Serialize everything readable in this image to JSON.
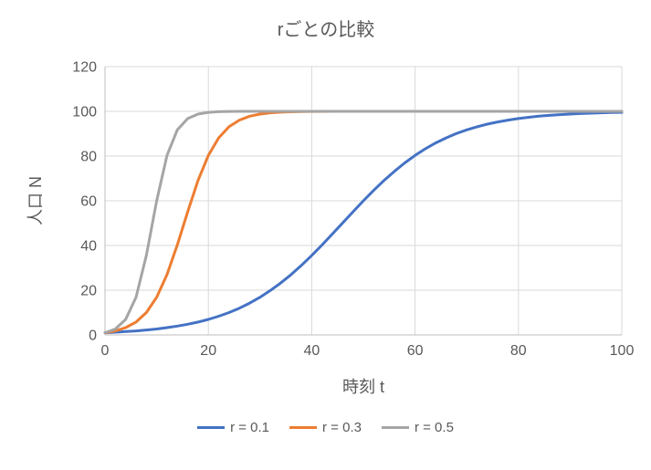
{
  "colors": {
    "text": "#595959",
    "gridline": "#D9D9D9",
    "axis": "#BFBFBF",
    "background": "#FFFFFF"
  },
  "chart_data": {
    "type": "line",
    "title": "rごとの比較",
    "xlabel": "時刻 t",
    "ylabel": "人口 N",
    "xlim": [
      0,
      100
    ],
    "ylim": [
      0,
      120
    ],
    "xticks": [
      0,
      20,
      40,
      60,
      80,
      100
    ],
    "yticks": [
      0,
      20,
      40,
      60,
      80,
      100,
      120
    ],
    "grid": "both",
    "legend_position": "bottom",
    "x": [
      0,
      2,
      4,
      6,
      8,
      10,
      12,
      14,
      16,
      18,
      20,
      22,
      24,
      26,
      28,
      30,
      32,
      34,
      36,
      38,
      40,
      42,
      44,
      46,
      48,
      50,
      52,
      54,
      56,
      58,
      60,
      62,
      64,
      66,
      68,
      70,
      72,
      74,
      76,
      78,
      80,
      82,
      84,
      86,
      88,
      90,
      92,
      94,
      96,
      98,
      100
    ],
    "series": [
      {
        "name": "r = 0.1",
        "color": "#4472C4",
        "values": [
          1.0,
          1.22,
          1.49,
          1.81,
          2.2,
          2.67,
          3.25,
          3.94,
          4.76,
          5.76,
          6.94,
          8.35,
          10.02,
          11.97,
          14.25,
          16.87,
          19.86,
          23.23,
          26.99,
          31.1,
          35.55,
          40.24,
          45.13,
          50.12,
          55.1,
          59.99,
          64.67,
          69.09,
          73.2,
          76.94,
          80.3,
          83.27,
          85.87,
          88.13,
          90.07,
          91.72,
          93.12,
          94.29,
          95.28,
          96.1,
          96.79,
          97.35,
          97.82,
          98.21,
          98.53,
          98.79,
          99.01,
          99.19,
          99.33,
          99.45,
          99.55
        ]
      },
      {
        "name": "r = 0.3",
        "color": "#ED7D31",
        "values": [
          1.0,
          1.81,
          3.25,
          5.76,
          10.02,
          16.87,
          26.99,
          40.24,
          55.1,
          69.09,
          80.3,
          88.13,
          93.12,
          96.1,
          97.82,
          98.79,
          99.33,
          99.63,
          99.8,
          99.89,
          99.94,
          99.97,
          99.98,
          99.99,
          99.99,
          100.0,
          100.0,
          100.0,
          100.0,
          100.0,
          100.0,
          100.0,
          100.0,
          100.0,
          100.0,
          100.0,
          100.0,
          100.0,
          100.0,
          100.0,
          100.0,
          100.0,
          100.0,
          100.0,
          100.0,
          100.0,
          100.0,
          100.0,
          100.0,
          100.0,
          100.0
        ]
      },
      {
        "name": "r = 0.5",
        "color": "#A5A5A5",
        "values": [
          1.0,
          2.67,
          6.94,
          16.87,
          35.55,
          59.99,
          80.3,
          91.72,
          96.79,
          98.79,
          99.55,
          99.84,
          99.94,
          99.98,
          99.99,
          100.0,
          100.0,
          100.0,
          100.0,
          100.0,
          100.0,
          100.0,
          100.0,
          100.0,
          100.0,
          100.0,
          100.0,
          100.0,
          100.0,
          100.0,
          100.0,
          100.0,
          100.0,
          100.0,
          100.0,
          100.0,
          100.0,
          100.0,
          100.0,
          100.0,
          100.0,
          100.0,
          100.0,
          100.0,
          100.0,
          100.0,
          100.0,
          100.0,
          100.0,
          100.0,
          100.0
        ]
      }
    ]
  }
}
